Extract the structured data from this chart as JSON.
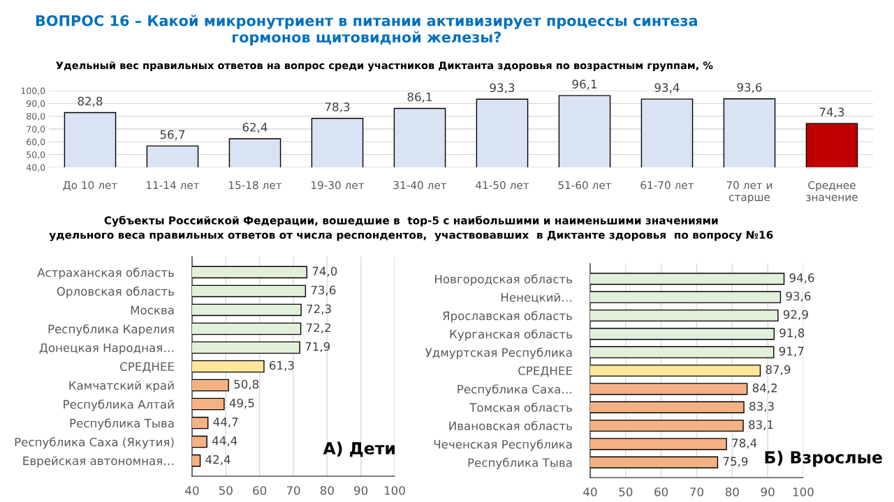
{
  "chart_data": [
    {
      "type": "bar",
      "title": "ВОПРОС 16 – Какой микронутриент в питании активизирует процессы синтеза гормонов щитовидной железы?",
      "subtitle": "Удельный вес правильных ответов на вопрос среди участников Диктанта здоровья по возрастным группам, %",
      "categories": [
        "До 10 лет",
        "11-14 лет",
        "15-18 лет",
        "19-30 лет",
        "31-40 лет",
        "41-50 лет",
        "51-60 лет",
        "61-70 лет",
        "70 лет и старше",
        "Среднее значение"
      ],
      "values": [
        82.8,
        56.7,
        62.4,
        78.3,
        86.1,
        93.3,
        96.1,
        93.4,
        93.6,
        74.3
      ],
      "value_labels": [
        "82,8",
        "56,7",
        "62,4",
        "78,3",
        "86,1",
        "93,3",
        "96,1",
        "93,4",
        "93,6",
        "74,3"
      ],
      "colors": [
        "#dae3f3",
        "#dae3f3",
        "#dae3f3",
        "#dae3f3",
        "#dae3f3",
        "#dae3f3",
        "#dae3f3",
        "#dae3f3",
        "#dae3f3",
        "#c00000"
      ],
      "ylim": [
        40,
        100
      ],
      "yticks": [
        {
          "value": 40,
          "label": "40,0"
        },
        {
          "value": 50,
          "label": "50,0"
        },
        {
          "value": 60,
          "label": "60,0"
        },
        {
          "value": 70,
          "label": "70,0"
        },
        {
          "value": 80,
          "label": "80,0"
        },
        {
          "value": 90,
          "label": "90,0"
        },
        {
          "value": 100,
          "label": "100,0"
        }
      ],
      "grid": "y"
    },
    {
      "type": "bar",
      "orientation": "horizontal",
      "title": "Субъекты Российской Федерации, вошедшие в  top-5 с наибольшими и наименьшими значениями\nудельного веса правильных ответов от числа респондентов,  участвовавших  в Диктанте здоровья  по вопросу №16",
      "annotations": [
        "А) Дети"
      ],
      "categories": [
        "Астраханская область",
        "Орловская область",
        "Москва",
        "Республика Карелия",
        "Донецкая Народная…",
        "СРЕДНЕЕ",
        "Камчатский край",
        "Республика Алтай",
        "Республика Тыва",
        "Республика Саха (Якутия)",
        "Еврейская автономная…"
      ],
      "values": [
        74.0,
        73.6,
        72.3,
        72.2,
        71.9,
        61.3,
        50.8,
        49.5,
        44.7,
        44.4,
        42.4
      ],
      "value_labels": [
        "74,0",
        "73,6",
        "72,3",
        "72,2",
        "71,9",
        "61,3",
        "50,8",
        "49,5",
        "44,7",
        "44,4",
        "42,4"
      ],
      "colors": [
        "#e2f0d9",
        "#e2f0d9",
        "#e2f0d9",
        "#e2f0d9",
        "#e2f0d9",
        "#ffe699",
        "#f4b183",
        "#f4b183",
        "#f4b183",
        "#f4b183",
        "#f4b183"
      ],
      "xlim": [
        40,
        100
      ],
      "xticks": [
        40,
        50,
        60,
        70,
        80,
        90,
        100
      ],
      "grid": "x"
    },
    {
      "type": "bar",
      "orientation": "horizontal",
      "annotations": [
        "Б) Взрослые"
      ],
      "categories": [
        "Новгородская область",
        "Ненецкий…",
        "Ярославская область",
        "Курганская область",
        "Удмуртская Республика",
        "СРЕДНЕЕ",
        "Республика Саха…",
        "Томская область",
        "Ивановская область",
        "Чеченская Республика",
        "Республика Тыва"
      ],
      "values": [
        94.6,
        93.6,
        92.9,
        91.8,
        91.7,
        87.9,
        84.2,
        83.3,
        83.1,
        78.4,
        75.9
      ],
      "value_labels": [
        "94,6",
        "93,6",
        "92,9",
        "91,8",
        "91,7",
        "87,9",
        "84,2",
        "83,3",
        "83,1",
        "78,4",
        "75,9"
      ],
      "colors": [
        "#e2f0d9",
        "#e2f0d9",
        "#e2f0d9",
        "#e2f0d9",
        "#e2f0d9",
        "#ffe699",
        "#f4b183",
        "#f4b183",
        "#f4b183",
        "#f4b183",
        "#f4b183"
      ],
      "xlim": [
        40,
        100
      ],
      "xticks": [
        40,
        50,
        60,
        70,
        80,
        90,
        100
      ],
      "grid": "x"
    }
  ]
}
